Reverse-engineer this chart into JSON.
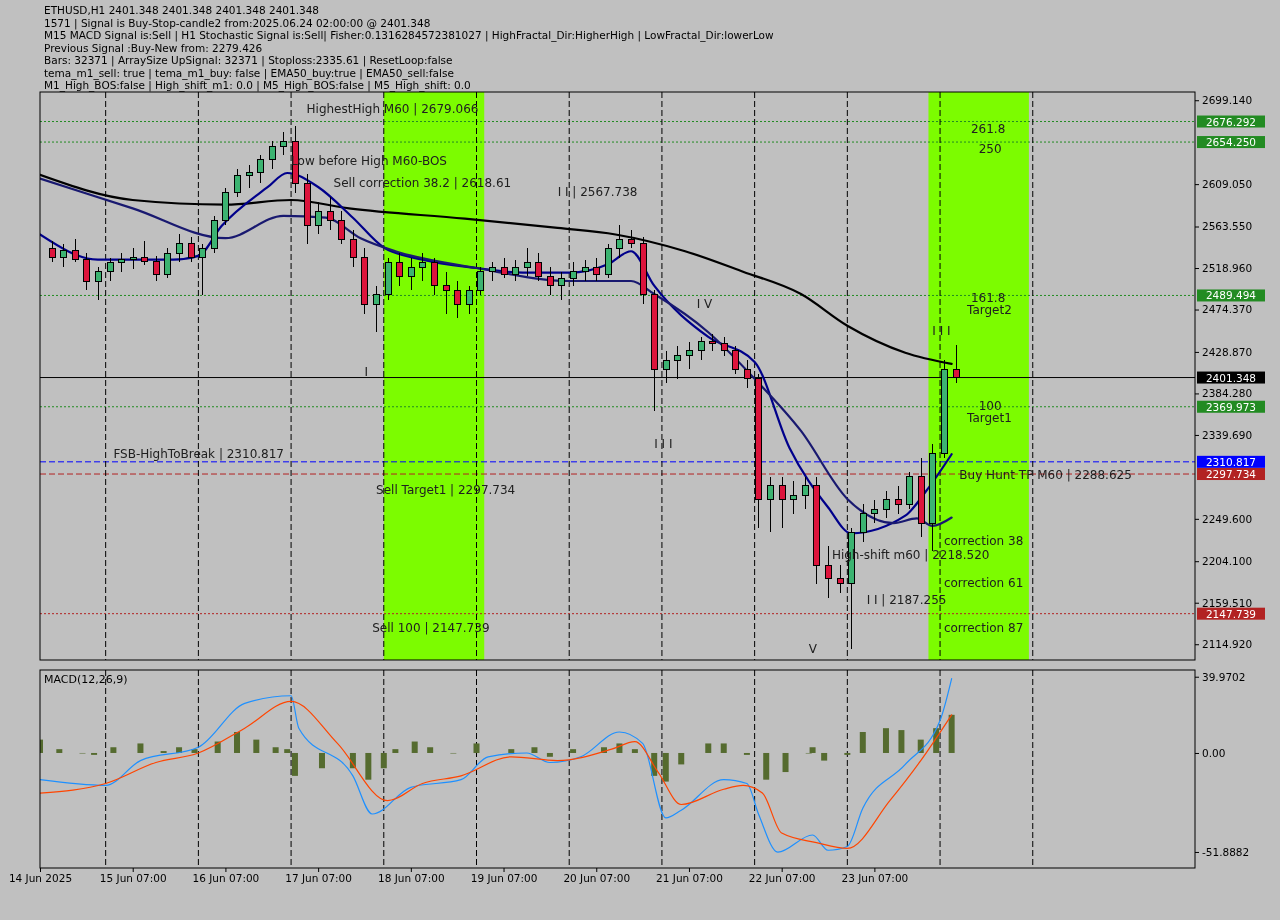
{
  "chart_data": [
    {
      "type": "candlestick",
      "title": "ETHUSD,H1  2401.348 2401.348 2401.348 2401.348",
      "annotations": [
        "1571 | Signal is Buy-Stop-candle2 from:2025.06.24 02:00:00 @ 2401.348",
        "M15 MACD Signal is:Sell | H1 Stochastic Signal is:Sell| Fisher:0.1316284572381027 | HighFractal_Dir:HigherHigh | LowFractal_Dir:lowerLow",
        "Previous Signal :Buy-New from: 2279.426",
        "Bars: 32371 | ArraySize UpSignal: 32371 | Stoploss:2335.61 | ResetLoop:false",
        "tema_m1_sell: true | tema_m1_buy: false | EMA50_buy:true | EMA50_sell:false",
        "M1_High_BOS:false | High_shift_m1: 0.0 | M5_High_BOS:false | M5_High_shift: 0.0",
        "HighestHigh  M60 | 2679.066",
        "Low before High  M60-BOS",
        "Sell correction 38.2 | 2618.61",
        "I I | 2567.738",
        "I",
        "I V",
        "I I I",
        "V",
        "Sell Target1 | 2297.734",
        "Sell 100 | 2147.739",
        "Buy Hunt TP M60 | 2288.625",
        "High-shift m60 | 2218.520",
        "I I | 2187.255",
        "I I I",
        "correction 38",
        "correction 61",
        "correction 87",
        "261.8",
        "250",
        "161.8",
        "Target2",
        "100",
        "Target1",
        "FSB-HighToBreak | 2310.817"
      ],
      "x": [
        "2025-06-14T10:00",
        "2025-06-14T13:00",
        "2025-06-14T16:00",
        "2025-06-14T19:00",
        "2025-06-14T22:00",
        "2025-06-15T01:00",
        "2025-06-15T04:00",
        "2025-06-15T07:00",
        "2025-06-15T10:00",
        "2025-06-15T13:00",
        "2025-06-15T16:00",
        "2025-06-15T19:00",
        "2025-06-15T22:00",
        "2025-06-16T01:00",
        "2025-06-16T04:00",
        "2025-06-16T07:00",
        "2025-06-16T10:00",
        "2025-06-16T13:00",
        "2025-06-16T16:00",
        "2025-06-16T19:00",
        "2025-06-16T22:00",
        "2025-06-17T01:00",
        "2025-06-17T04:00",
        "2025-06-17T07:00",
        "2025-06-17T10:00",
        "2025-06-17T13:00",
        "2025-06-17T16:00",
        "2025-06-17T19:00",
        "2025-06-17T22:00",
        "2025-06-18T01:00",
        "2025-06-18T04:00",
        "2025-06-18T07:00",
        "2025-06-18T10:00",
        "2025-06-18T13:00",
        "2025-06-18T16:00",
        "2025-06-18T19:00",
        "2025-06-18T22:00",
        "2025-06-19T01:00",
        "2025-06-19T04:00",
        "2025-06-19T07:00",
        "2025-06-19T10:00",
        "2025-06-19T13:00",
        "2025-06-19T16:00",
        "2025-06-19T19:00",
        "2025-06-19T22:00",
        "2025-06-20T01:00",
        "2025-06-20T04:00",
        "2025-06-20T07:00",
        "2025-06-20T10:00",
        "2025-06-20T13:00",
        "2025-06-20T16:00",
        "2025-06-20T19:00",
        "2025-06-20T22:00",
        "2025-06-21T01:00",
        "2025-06-21T04:00",
        "2025-06-21T07:00",
        "2025-06-21T10:00",
        "2025-06-21T13:00",
        "2025-06-21T16:00",
        "2025-06-21T19:00",
        "2025-06-21T22:00",
        "2025-06-22T01:00",
        "2025-06-22T04:00",
        "2025-06-22T07:00",
        "2025-06-22T10:00",
        "2025-06-22T13:00",
        "2025-06-22T16:00",
        "2025-06-22T19:00",
        "2025-06-22T22:00",
        "2025-06-23T01:00",
        "2025-06-23T04:00",
        "2025-06-23T07:00",
        "2025-06-23T10:00",
        "2025-06-23T13:00",
        "2025-06-23T16:00",
        "2025-06-23T19:00",
        "2025-06-23T22:00",
        "2025-06-24T01:00",
        "2025-06-24T04:00"
      ],
      "ohlc": [
        [
          2540,
          2548,
          2525,
          2530
        ],
        [
          2530,
          2545,
          2520,
          2538
        ],
        [
          2538,
          2550,
          2525,
          2528
        ],
        [
          2528,
          2535,
          2495,
          2505
        ],
        [
          2505,
          2520,
          2485,
          2515
        ],
        [
          2515,
          2530,
          2505,
          2525
        ],
        [
          2525,
          2535,
          2515,
          2528
        ],
        [
          2528,
          2540,
          2518,
          2530
        ],
        [
          2530,
          2548,
          2522,
          2526
        ],
        [
          2526,
          2532,
          2505,
          2512
        ],
        [
          2512,
          2540,
          2508,
          2535
        ],
        [
          2535,
          2555,
          2525,
          2545
        ],
        [
          2545,
          2552,
          2525,
          2530
        ],
        [
          2530,
          2545,
          2490,
          2540
        ],
        [
          2540,
          2575,
          2535,
          2570
        ],
        [
          2570,
          2605,
          2565,
          2600
        ],
        [
          2600,
          2625,
          2595,
          2618
        ],
        [
          2618,
          2630,
          2605,
          2622
        ],
        [
          2622,
          2640,
          2610,
          2635
        ],
        [
          2635,
          2655,
          2625,
          2650
        ],
        [
          2650,
          2665,
          2640,
          2655
        ],
        [
          2655,
          2672,
          2600,
          2610
        ],
        [
          2610,
          2620,
          2545,
          2565
        ],
        [
          2565,
          2590,
          2555,
          2580
        ],
        [
          2580,
          2595,
          2560,
          2570
        ],
        [
          2570,
          2580,
          2545,
          2550
        ],
        [
          2550,
          2560,
          2520,
          2530
        ],
        [
          2530,
          2540,
          2470,
          2480
        ],
        [
          2480,
          2500,
          2450,
          2490
        ],
        [
          2490,
          2530,
          2485,
          2525
        ],
        [
          2525,
          2535,
          2500,
          2510
        ],
        [
          2510,
          2530,
          2495,
          2520
        ],
        [
          2520,
          2535,
          2505,
          2525
        ],
        [
          2525,
          2530,
          2490,
          2500
        ],
        [
          2500,
          2515,
          2470,
          2495
        ],
        [
          2495,
          2505,
          2465,
          2480
        ],
        [
          2480,
          2500,
          2470,
          2495
        ],
        [
          2495,
          2520,
          2490,
          2515
        ],
        [
          2515,
          2525,
          2505,
          2520
        ],
        [
          2520,
          2530,
          2508,
          2512
        ],
        [
          2512,
          2528,
          2505,
          2520
        ],
        [
          2520,
          2540,
          2510,
          2525
        ],
        [
          2525,
          2535,
          2505,
          2510
        ],
        [
          2510,
          2520,
          2490,
          2500
        ],
        [
          2500,
          2515,
          2485,
          2508
        ],
        [
          2508,
          2525,
          2500,
          2515
        ],
        [
          2515,
          2528,
          2505,
          2520
        ],
        [
          2520,
          2530,
          2505,
          2512
        ],
        [
          2512,
          2545,
          2508,
          2540
        ],
        [
          2540,
          2565,
          2530,
          2550
        ],
        [
          2550,
          2560,
          2540,
          2545
        ],
        [
          2545,
          2552,
          2480,
          2490
        ],
        [
          2490,
          2495,
          2365,
          2410
        ],
        [
          2410,
          2430,
          2395,
          2420
        ],
        [
          2420,
          2435,
          2400,
          2425
        ],
        [
          2425,
          2440,
          2410,
          2430
        ],
        [
          2430,
          2445,
          2420,
          2440
        ],
        [
          2440,
          2448,
          2430,
          2438
        ],
        [
          2438,
          2445,
          2425,
          2430
        ],
        [
          2430,
          2435,
          2405,
          2410
        ],
        [
          2410,
          2420,
          2390,
          2400
        ],
        [
          2400,
          2405,
          2240,
          2270
        ],
        [
          2270,
          2295,
          2235,
          2285
        ],
        [
          2285,
          2295,
          2240,
          2270
        ],
        [
          2270,
          2290,
          2255,
          2275
        ],
        [
          2275,
          2295,
          2260,
          2285
        ],
        [
          2285,
          2295,
          2180,
          2200
        ],
        [
          2200,
          2220,
          2165,
          2185
        ],
        [
          2185,
          2200,
          2170,
          2180
        ],
        [
          2180,
          2240,
          2110,
          2235
        ],
        [
          2235,
          2265,
          2225,
          2255
        ],
        [
          2255,
          2270,
          2245,
          2260
        ],
        [
          2260,
          2280,
          2250,
          2270
        ],
        [
          2270,
          2285,
          2255,
          2265
        ],
        [
          2265,
          2300,
          2260,
          2295
        ],
        [
          2295,
          2315,
          2230,
          2245
        ],
        [
          2245,
          2330,
          2215,
          2320
        ],
        [
          2320,
          2420,
          2315,
          2410
        ],
        [
          2410,
          2436,
          2395,
          2401.348
        ]
      ],
      "series": [
        {
          "type": "line",
          "color": "#000000",
          "x": [
            "2025-06-14T07:00",
            "2025-06-15T07:00",
            "2025-06-16T07:00",
            "2025-06-17T00:00",
            "2025-06-17T15:00",
            "2025-06-18T21:00",
            "2025-06-19T21:00",
            "2025-06-20T12:00",
            "2025-06-21T06:00",
            "2025-06-21T21:00",
            "2025-06-22T12:00",
            "2025-06-23T00:00",
            "2025-06-23T15:00",
            "2025-06-24T03:00"
          ],
          "values": [
            2619,
            2592,
            2587,
            2592,
            2583,
            2572,
            2562,
            2555,
            2537,
            2515,
            2491,
            2457,
            2428,
            2416
          ]
        },
        {
          "type": "line",
          "color": "#00008b",
          "x": [
            "2025-06-14T07:00",
            "2025-06-14T22:00",
            "2025-06-15T17:30",
            "2025-06-16T00:00",
            "2025-06-16T06:00",
            "2025-06-16T18:00",
            "2025-06-16T23:00",
            "2025-06-17T07:00",
            "2025-06-17T16:00",
            "2025-06-18T00:00",
            "2025-06-18T10:00",
            "2025-06-19T00:00",
            "2025-06-19T12:00",
            "2025-06-20T00:00",
            "2025-06-20T10:00",
            "2025-06-20T16:00",
            "2025-06-20T22:00",
            "2025-06-21T12:00",
            "2025-06-22T00:00",
            "2025-06-22T09:00",
            "2025-06-22T19:00",
            "2025-06-23T01:00",
            "2025-06-23T15:00",
            "2025-06-23T20:30",
            "2025-06-24T03:00"
          ],
          "values": [
            2555,
            2528,
            2528,
            2532,
            2564,
            2606,
            2621,
            2606,
            2573,
            2541,
            2528,
            2519,
            2514,
            2514,
            2523,
            2537,
            2500,
            2445,
            2418,
            2326,
            2262,
            2234,
            2253,
            2280,
            2319
          ]
        },
        {
          "type": "line",
          "color": "#191970",
          "x": [
            "2025-06-14T07:00",
            "2025-06-15T07:00",
            "2025-06-16T07:00",
            "2025-06-16T22:00",
            "2025-06-17T09:00",
            "2025-06-17T18:00",
            "2025-06-18T03:00",
            "2025-06-19T00:00",
            "2025-06-20T00:00",
            "2025-06-20T16:00",
            "2025-06-20T22:00",
            "2025-06-21T12:00",
            "2025-06-22T00:00",
            "2025-06-22T12:00",
            "2025-06-23T00:00",
            "2025-06-23T12:00",
            "2025-06-23T18:00",
            "2025-06-23T22:00",
            "2025-06-24T03:00"
          ],
          "values": [
            2615,
            2583,
            2551,
            2575,
            2573,
            2551,
            2537,
            2519,
            2505,
            2505,
            2491,
            2450,
            2400,
            2344,
            2271,
            2245,
            2250,
            2242,
            2251
          ]
        }
      ],
      "ref_lines": [
        {
          "axis": "y",
          "value": 2676.292,
          "color": "#228b22",
          "line_style": "dotted",
          "label": "2676.292"
        },
        {
          "axis": "y",
          "value": 2654.25,
          "color": "#228b22",
          "line_style": "dotted",
          "label": "2654.250"
        },
        {
          "axis": "y",
          "value": 2489.494,
          "color": "#228b22",
          "line_style": "dotted",
          "label": "2489.494"
        },
        {
          "axis": "y",
          "value": 2369.973,
          "color": "#228b22",
          "line_style": "dotted",
          "label": "2369.973"
        },
        {
          "axis": "y",
          "value": 2401.348,
          "color": "#000000",
          "line_style": "solid",
          "label": "2401.348"
        },
        {
          "axis": "y",
          "value": 2310.817,
          "color": "#0000ff",
          "line_style": "dashed",
          "label": "2310.817"
        },
        {
          "axis": "y",
          "value": 2297.734,
          "color": "#b22222",
          "line_style": "dashed",
          "label": "2297.734"
        },
        {
          "axis": "y",
          "value": 2147.739,
          "color": "#b22222",
          "line_style": "dotted",
          "label": "2147.739"
        },
        {
          "axis": "x",
          "value": "2025-06-15T00:00",
          "color": "#000000",
          "line_style": "dashed"
        },
        {
          "axis": "x",
          "value": "2025-06-16T00:00",
          "color": "#000000",
          "line_style": "dashed"
        },
        {
          "axis": "x",
          "value": "2025-06-17T00:00",
          "color": "#000000",
          "line_style": "dashed"
        },
        {
          "axis": "x",
          "value": "2025-06-18T00:00",
          "color": "#000000",
          "line_style": "dashed"
        },
        {
          "axis": "x",
          "value": "2025-06-19T00:00",
          "color": "#000000",
          "line_style": "dashed"
        },
        {
          "axis": "x",
          "value": "2025-06-20T00:00",
          "color": "#000000",
          "line_style": "dashed"
        },
        {
          "axis": "x",
          "value": "2025-06-21T00:00",
          "color": "#000000",
          "line_style": "dashed"
        },
        {
          "axis": "x",
          "value": "2025-06-22T00:00",
          "color": "#000000",
          "line_style": "dashed"
        },
        {
          "axis": "x",
          "value": "2025-06-23T00:00",
          "color": "#000000",
          "line_style": "dashed"
        },
        {
          "axis": "x",
          "value": "2025-06-24T00:00",
          "color": "#000000",
          "line_style": "dashed"
        },
        {
          "axis": "x",
          "value": "2025-06-25T00:00",
          "color": "#000000",
          "line_style": "dashed"
        }
      ],
      "bands": [
        {
          "axis": "x",
          "from": "2025-06-18T00:00",
          "to": "2025-06-19T02:00",
          "color": "#7cfc00"
        },
        {
          "axis": "x",
          "from": "2025-06-23T21:00",
          "to": "2025-06-24T23:00",
          "color": "#7cfc00"
        }
      ],
      "xlim": [
        "2025-06-14T07:00",
        "2025-06-26T18:00"
      ],
      "ylim": [
        2098,
        2708
      ],
      "yticks": [
        {
          "value": 2699.14,
          "label": "2699.140"
        },
        {
          "value": 2609.05,
          "label": "2609.050"
        },
        {
          "value": 2563.55,
          "label": "2563.550"
        },
        {
          "value": 2518.96,
          "label": "2518.960"
        },
        {
          "value": 2474.37,
          "label": "2474.370"
        },
        {
          "value": 2428.87,
          "label": "2428.870"
        },
        {
          "value": 2384.28,
          "label": "2384.280"
        },
        {
          "value": 2339.69,
          "label": "2339.690"
        },
        {
          "value": 2249.6,
          "label": "2249.600"
        },
        {
          "value": 2204.1,
          "label": "2204.100"
        },
        {
          "value": 2159.51,
          "label": "2159.510"
        },
        {
          "value": 2114.92,
          "label": "2114.920"
        }
      ],
      "tick_labels": "y"
    },
    {
      "type": "bar",
      "title": "MACD(12,26,9)",
      "color": "#556b2f",
      "x": [
        "2025-06-14T07:00",
        "2025-06-14T12:00",
        "2025-06-14T18:00",
        "2025-06-14T21:00",
        "2025-06-15T02:00",
        "2025-06-15T09:00",
        "2025-06-15T15:00",
        "2025-06-15T19:00",
        "2025-06-15T23:00",
        "2025-06-16T05:00",
        "2025-06-16T10:00",
        "2025-06-16T15:00",
        "2025-06-16T20:00",
        "2025-06-16T23:00",
        "2025-06-17T01:00",
        "2025-06-17T08:00",
        "2025-06-17T16:00",
        "2025-06-17T20:00",
        "2025-06-18T00:00",
        "2025-06-18T03:00",
        "2025-06-18T08:00",
        "2025-06-18T12:00",
        "2025-06-18T18:00",
        "2025-06-19T00:00",
        "2025-06-19T09:00",
        "2025-06-19T15:00",
        "2025-06-19T19:00",
        "2025-06-20T01:00",
        "2025-06-20T09:00",
        "2025-06-20T13:00",
        "2025-06-20T17:00",
        "2025-06-20T22:00",
        "2025-06-21T01:00",
        "2025-06-21T05:00",
        "2025-06-21T12:00",
        "2025-06-21T16:00",
        "2025-06-21T22:00",
        "2025-06-22T03:00",
        "2025-06-22T08:00",
        "2025-06-22T14:00",
        "2025-06-22T15:00",
        "2025-06-22T18:00",
        "2025-06-23T00:00",
        "2025-06-23T04:00",
        "2025-06-23T10:00",
        "2025-06-23T14:00",
        "2025-06-23T19:00",
        "2025-06-23T23:00",
        "2025-06-24T03:00"
      ],
      "values": [
        7,
        2,
        0,
        -1,
        3,
        5,
        1,
        3,
        2,
        6,
        11,
        7,
        3,
        2,
        -12,
        -8,
        -8,
        -14,
        -8,
        2,
        6,
        3,
        0,
        5,
        2,
        3,
        -2,
        2,
        3,
        5,
        2,
        -12,
        -15,
        -6,
        5,
        5,
        -1,
        -14,
        -10,
        0,
        3,
        -4,
        -1,
        11,
        13,
        12,
        7,
        13,
        20
      ],
      "series": [
        {
          "type": "line",
          "color": "#1e90ff",
          "x": [
            "2025-06-14T07:00",
            "2025-06-15T00:00",
            "2025-06-15T09:00",
            "2025-06-16T00:00",
            "2025-06-16T12:00",
            "2025-06-17T00:00",
            "2025-06-17T02:00",
            "2025-06-17T16:00",
            "2025-06-17T21:00",
            "2025-06-18T07:00",
            "2025-06-18T20:00",
            "2025-06-19T03:00",
            "2025-06-19T13:00",
            "2025-06-19T19:00",
            "2025-06-20T03:00",
            "2025-06-20T13:00",
            "2025-06-20T19:00",
            "2025-06-21T01:00",
            "2025-06-21T05:00",
            "2025-06-21T16:00",
            "2025-06-21T22:00",
            "2025-06-22T01:00",
            "2025-06-22T06:00",
            "2025-06-22T15:00",
            "2025-06-22T19:00",
            "2025-06-23T00:00",
            "2025-06-23T04:00",
            "2025-06-23T15:00",
            "2025-06-24T00:00",
            "2025-06-24T03:00"
          ],
          "values": [
            -14,
            -17,
            -4,
            3,
            26,
            30,
            13,
            -12,
            -32,
            -18,
            -14,
            -2,
            0,
            -5,
            -2,
            11,
            5,
            -34,
            -30,
            -14,
            -16,
            -32,
            -52,
            -43,
            -51,
            -49,
            -29,
            -6,
            17,
            39
          ]
        },
        {
          "type": "line",
          "color": "#ff4500",
          "x": [
            "2025-06-14T07:00",
            "2025-06-15T00:00",
            "2025-06-15T13:00",
            "2025-06-16T00:00",
            "2025-06-16T12:00",
            "2025-06-17T00:00",
            "2025-06-17T12:00",
            "2025-06-18T01:00",
            "2025-06-18T10:00",
            "2025-06-18T20:00",
            "2025-06-19T09:00",
            "2025-06-19T21:00",
            "2025-06-20T11:00",
            "2025-06-20T17:00",
            "2025-06-20T23:00",
            "2025-06-21T05:00",
            "2025-06-21T16:00",
            "2025-06-21T21:00",
            "2025-06-22T02:00",
            "2025-06-22T07:00",
            "2025-06-22T16:00",
            "2025-06-23T00:00",
            "2025-06-23T11:00",
            "2025-06-23T19:00",
            "2025-06-24T03:00"
          ],
          "values": [
            -21,
            -16,
            -5,
            0,
            13,
            27,
            5,
            -25,
            -16,
            -12,
            -2,
            -4,
            2,
            6,
            -10,
            -27,
            -19,
            -17,
            -21,
            -42,
            -47,
            -50,
            -25,
            -4,
            20
          ]
        }
      ],
      "ref_lines": [
        {
          "axis": "x",
          "value": "2025-06-15T00:00",
          "color": "#000000",
          "line_style": "dashed"
        },
        {
          "axis": "x",
          "value": "2025-06-16T00:00",
          "color": "#000000",
          "line_style": "dashed"
        },
        {
          "axis": "x",
          "value": "2025-06-17T00:00",
          "color": "#000000",
          "line_style": "dashed"
        },
        {
          "axis": "x",
          "value": "2025-06-18T00:00",
          "color": "#000000",
          "line_style": "dashed"
        },
        {
          "axis": "x",
          "value": "2025-06-19T00:00",
          "color": "#000000",
          "line_style": "dashed"
        },
        {
          "axis": "x",
          "value": "2025-06-20T00:00",
          "color": "#000000",
          "line_style": "dashed"
        },
        {
          "axis": "x",
          "value": "2025-06-21T00:00",
          "color": "#000000",
          "line_style": "dashed"
        },
        {
          "axis": "x",
          "value": "2025-06-22T00:00",
          "color": "#000000",
          "line_style": "dashed"
        },
        {
          "axis": "x",
          "value": "2025-06-23T00:00",
          "color": "#000000",
          "line_style": "dashed"
        },
        {
          "axis": "x",
          "value": "2025-06-24T00:00",
          "color": "#000000",
          "line_style": "dashed"
        },
        {
          "axis": "x",
          "value": "2025-06-25T00:00",
          "color": "#000000",
          "line_style": "dashed"
        }
      ],
      "xlim": [
        "2025-06-14T07:00",
        "2025-06-26T18:00"
      ],
      "xticks": [
        {
          "value": "2025-06-14T07:00",
          "label": "14 Jun 2025"
        },
        {
          "value": "2025-06-15T07:00",
          "label": "15 Jun 07:00"
        },
        {
          "value": "2025-06-16T07:00",
          "label": "16 Jun 07:00"
        },
        {
          "value": "2025-06-17T07:00",
          "label": "17 Jun 07:00"
        },
        {
          "value": "2025-06-18T07:00",
          "label": "18 Jun 07:00"
        },
        {
          "value": "2025-06-19T07:00",
          "label": "19 Jun 07:00"
        },
        {
          "value": "2025-06-20T07:00",
          "label": "20 Jun 07:00"
        },
        {
          "value": "2025-06-21T07:00",
          "label": "21 Jun 07:00"
        },
        {
          "value": "2025-06-22T07:00",
          "label": "22 Jun 07:00"
        },
        {
          "value": "2025-06-23T07:00",
          "label": "23 Jun 07:00"
        }
      ],
      "ylim": [
        -60.3,
        43.5
      ],
      "yticks": [
        39.9702,
        {
          "value": 0,
          "label": "0.00"
        },
        -51.8882
      ]
    }
  ]
}
